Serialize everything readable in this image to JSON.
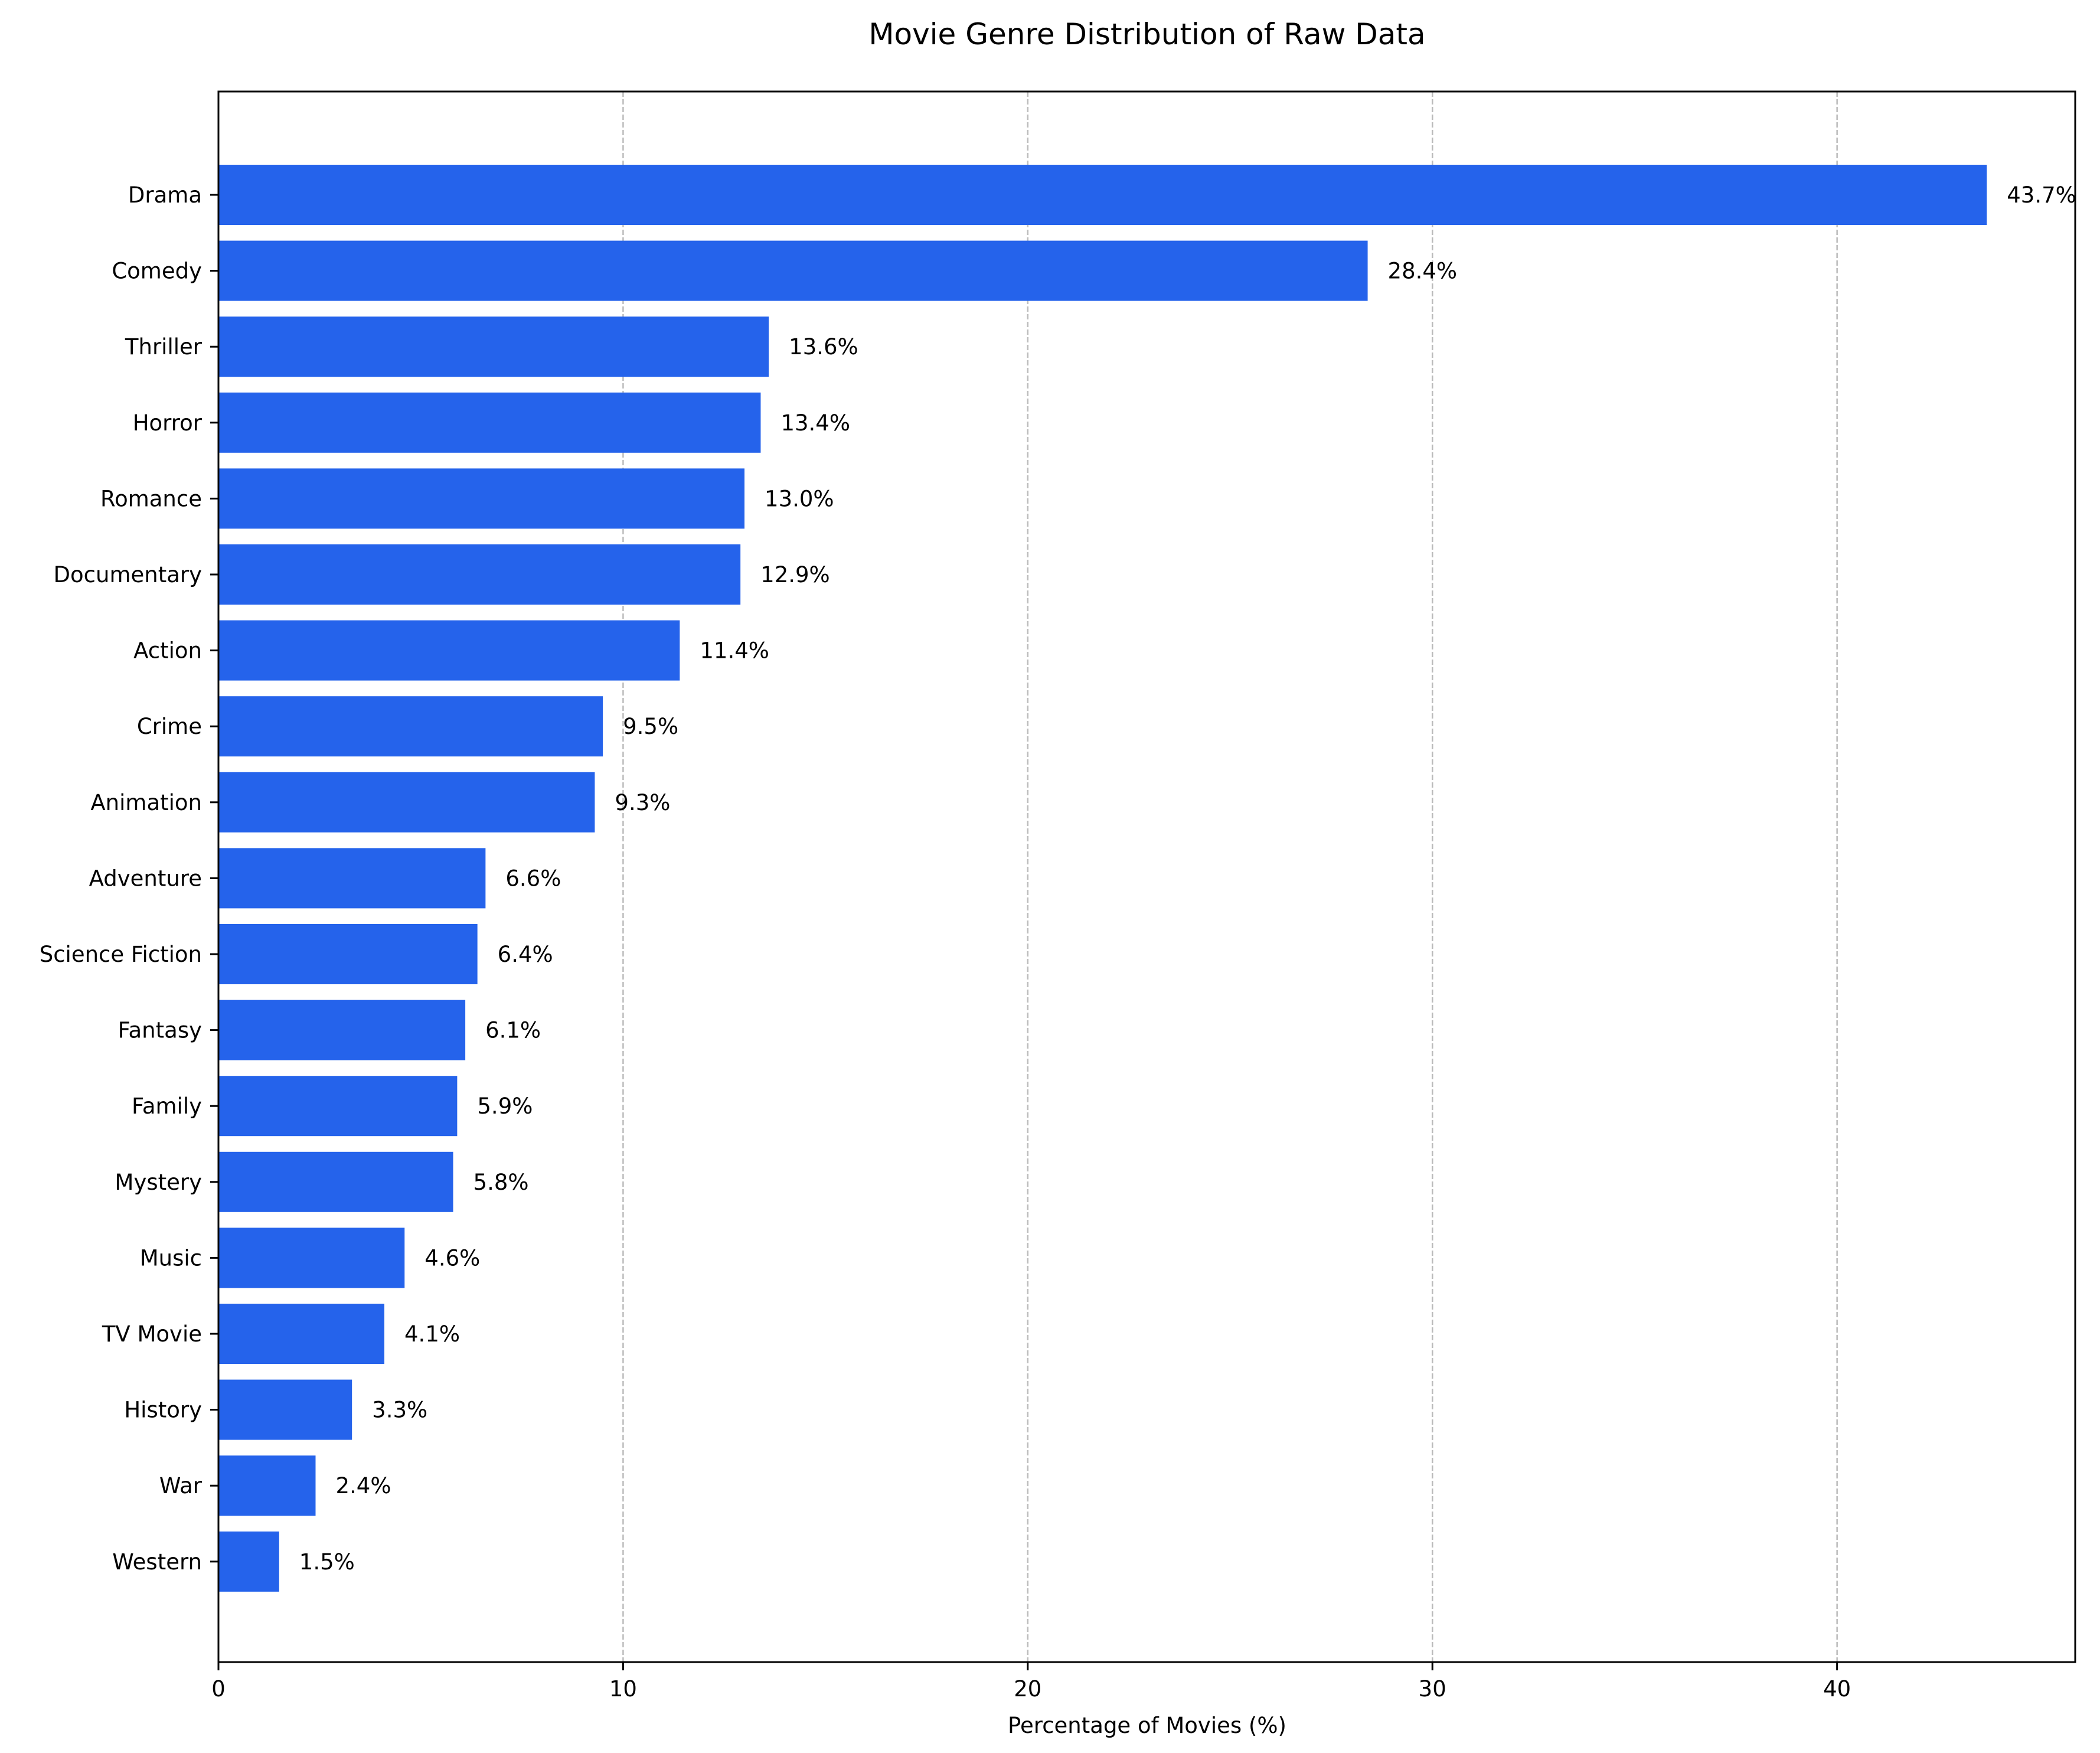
{
  "chart_data": {
    "type": "bar",
    "orientation": "horizontal",
    "title": "Movie Genre Distribution of Raw Data",
    "xlabel": "Percentage of Movies (%)",
    "ylabel": "",
    "xlim": [
      0,
      45.885
    ],
    "xticks": [
      0,
      10,
      20,
      30,
      40
    ],
    "grid": "x",
    "bar_color": "#2563eb",
    "categories": [
      "Drama",
      "Comedy",
      "Thriller",
      "Horror",
      "Romance",
      "Documentary",
      "Action",
      "Crime",
      "Animation",
      "Adventure",
      "Science Fiction",
      "Fantasy",
      "Family",
      "Mystery",
      "Music",
      "TV Movie",
      "History",
      "War",
      "Western"
    ],
    "values": [
      43.7,
      28.4,
      13.6,
      13.4,
      13.0,
      12.9,
      11.4,
      9.5,
      9.3,
      6.6,
      6.4,
      6.1,
      5.9,
      5.8,
      4.6,
      4.1,
      3.3,
      2.4,
      1.5
    ],
    "value_labels": [
      "43.7%",
      "28.4%",
      "13.6%",
      "13.4%",
      "13.0%",
      "12.9%",
      "11.4%",
      "9.5%",
      "9.3%",
      "6.6%",
      "6.4%",
      "6.1%",
      "5.9%",
      "5.8%",
      "4.6%",
      "4.1%",
      "3.3%",
      "2.4%",
      "1.5%"
    ]
  }
}
